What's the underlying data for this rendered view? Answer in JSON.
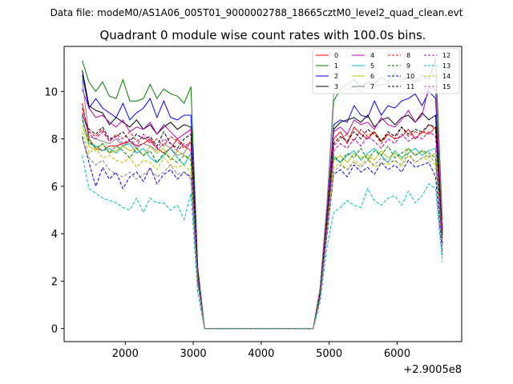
{
  "chart_data": {
    "type": "line",
    "suptitle": "Data file: modeM0/AS1A06_005T01_9000002788_18665cztM0_level2_quad_clean.evt",
    "title": "Quadrant 0 module wise count rates with 100.0s bins.",
    "xlabel": "",
    "ylabel": "",
    "x_offset_label": "+2.9005e8",
    "xlim": [
      1100,
      6950
    ],
    "ylim": [
      -0.55,
      11.9
    ],
    "xticks": [
      2000,
      3000,
      4000,
      5000,
      6000
    ],
    "xtick_labels": [
      "2000",
      "3000",
      "4000",
      "5000",
      "6000"
    ],
    "yticks": [
      0,
      2,
      4,
      6,
      8,
      10
    ],
    "ytick_labels": [
      "0",
      "2",
      "4",
      "6",
      "8",
      "10"
    ],
    "grid": false,
    "legend_position": "top-right",
    "x": [
      1366,
      1466,
      1566,
      1666,
      1766,
      1866,
      1966,
      2066,
      2166,
      2266,
      2366,
      2466,
      2566,
      2666,
      2766,
      2866,
      2966,
      3066,
      3166,
      3266,
      3366,
      3466,
      3566,
      3666,
      3766,
      3866,
      3966,
      4066,
      4166,
      4266,
      4366,
      4466,
      4566,
      4666,
      4766,
      4866,
      4966,
      5066,
      5166,
      5266,
      5366,
      5466,
      5566,
      5666,
      5766,
      5866,
      5966,
      6066,
      6166,
      6266,
      6366,
      6466,
      6566,
      6666
    ],
    "series": [
      {
        "name": "0",
        "color": "#ff0000",
        "dash": "solid",
        "values": [
          9.5,
          8.0,
          7.6,
          7.5,
          7.7,
          7.7,
          7.8,
          7.9,
          7.7,
          7.8,
          8.0,
          7.6,
          7.4,
          7.6,
          8.0,
          7.7,
          7.5,
          2.2,
          0,
          0,
          0,
          0,
          0,
          0,
          0,
          0,
          0,
          0,
          0,
          0,
          0,
          0,
          0,
          0,
          0,
          1.5,
          4.5,
          8.0,
          8.3,
          7.8,
          8.5,
          8.2,
          8.0,
          8.3,
          7.9,
          8.2,
          8.0,
          8.1,
          8.4,
          8.0,
          8.3,
          8.2,
          8.5,
          4.0
        ]
      },
      {
        "name": "1",
        "color": "#008000",
        "dash": "solid",
        "values": [
          11.3,
          10.4,
          10.0,
          10.4,
          9.8,
          9.7,
          10.5,
          9.6,
          9.6,
          9.7,
          10.3,
          9.7,
          10.1,
          9.9,
          9.8,
          9.5,
          10.2,
          2.6,
          0,
          0,
          0,
          0,
          0,
          0,
          0,
          0,
          0,
          0,
          0,
          0,
          0,
          0,
          0,
          0,
          0,
          1.7,
          5.2,
          9.6,
          10.1,
          10.3,
          10.5,
          10.2,
          10.4,
          10.3,
          10.6,
          10.4,
          10.8,
          10.5,
          10.6,
          10.4,
          10.7,
          10.5,
          11.4,
          4.6
        ]
      },
      {
        "name": "2",
        "color": "#0000ff",
        "dash": "solid",
        "values": [
          10.7,
          9.3,
          9.7,
          9.3,
          9.1,
          8.9,
          9.5,
          8.8,
          9.1,
          9.3,
          9.7,
          8.9,
          9.6,
          8.9,
          8.8,
          9.0,
          9.0,
          2.4,
          0,
          0,
          0,
          0,
          0,
          0,
          0,
          0,
          0,
          0,
          0,
          0,
          0,
          0,
          0,
          0,
          0,
          1.6,
          4.8,
          8.6,
          8.8,
          8.7,
          9.4,
          9.0,
          8.9,
          9.6,
          9.0,
          9.4,
          9.3,
          9.6,
          9.7,
          9.9,
          9.4,
          10.0,
          9.7,
          4.2
        ]
      },
      {
        "name": "3",
        "color": "#000000",
        "dash": "solid",
        "values": [
          10.9,
          9.4,
          9.2,
          9.1,
          8.6,
          8.9,
          8.7,
          8.5,
          8.8,
          8.4,
          8.6,
          8.2,
          8.5,
          8.7,
          8.4,
          8.6,
          8.5,
          2.3,
          0,
          0,
          0,
          0,
          0,
          0,
          0,
          0,
          0,
          0,
          0,
          0,
          0,
          0,
          0,
          0,
          0,
          1.6,
          4.7,
          8.4,
          8.7,
          8.8,
          8.9,
          8.7,
          9.0,
          8.5,
          8.8,
          8.9,
          8.6,
          8.9,
          9.0,
          8.7,
          9.1,
          8.8,
          9.0,
          4.1
        ]
      },
      {
        "name": "4",
        "color": "#bf00bf",
        "dash": "solid",
        "values": [
          10.1,
          9.3,
          8.9,
          9.0,
          8.7,
          8.5,
          8.8,
          8.3,
          8.5,
          8.4,
          8.7,
          8.2,
          8.6,
          8.3,
          8.0,
          8.2,
          8.4,
          2.3,
          0,
          0,
          0,
          0,
          0,
          0,
          0,
          0,
          0,
          0,
          0,
          0,
          0,
          0,
          0,
          0,
          0,
          1.6,
          4.7,
          8.3,
          8.5,
          8.2,
          8.8,
          8.6,
          8.7,
          8.4,
          8.9,
          8.6,
          8.5,
          8.8,
          9.2,
          8.7,
          9.0,
          10.2,
          10.1,
          4.2
        ]
      },
      {
        "name": "5",
        "color": "#00bfbf",
        "dash": "solid",
        "values": [
          8.9,
          7.8,
          7.7,
          7.5,
          7.6,
          7.4,
          7.7,
          7.8,
          7.4,
          7.6,
          7.2,
          7.0,
          7.3,
          7.6,
          7.2,
          6.9,
          7.4,
          2.1,
          0,
          0,
          0,
          0,
          0,
          0,
          0,
          0,
          0,
          0,
          0,
          0,
          0,
          0,
          0,
          0,
          0,
          1.4,
          4.2,
          7.2,
          7.0,
          7.3,
          7.5,
          7.1,
          7.4,
          7.6,
          7.3,
          7.0,
          7.5,
          7.2,
          7.4,
          7.6,
          7.3,
          7.5,
          7.6,
          3.6
        ]
      },
      {
        "name": "6",
        "color": "#bfbf00",
        "dash": "solid",
        "values": [
          8.6,
          7.7,
          7.5,
          7.8,
          7.4,
          7.5,
          7.7,
          7.5,
          7.6,
          7.3,
          7.7,
          7.4,
          7.6,
          7.1,
          7.5,
          7.3,
          7.2,
          2.1,
          0,
          0,
          0,
          0,
          0,
          0,
          0,
          0,
          0,
          0,
          0,
          0,
          0,
          0,
          0,
          0,
          0,
          1.4,
          4.2,
          7.1,
          7.3,
          7.0,
          7.4,
          7.2,
          7.3,
          7.1,
          7.5,
          7.2,
          7.4,
          7.1,
          7.6,
          7.3,
          7.5,
          7.2,
          7.4,
          3.5
        ]
      },
      {
        "name": "7",
        "color": "#808080",
        "dash": "solid",
        "values": [
          10.5,
          8.1,
          8.0,
          7.9,
          7.8,
          8.0,
          7.7,
          7.9,
          7.6,
          7.8,
          7.7,
          7.5,
          7.8,
          7.6,
          7.3,
          7.4,
          7.9,
          2.2,
          0,
          0,
          0,
          0,
          0,
          0,
          0,
          0,
          0,
          0,
          0,
          0,
          0,
          0,
          0,
          0,
          0,
          1.7,
          5.2,
          9.9,
          10.0,
          10.1,
          10.2,
          10.0,
          10.4,
          10.2,
          10.3,
          10.3,
          10.5,
          10.4,
          10.6,
          10.4,
          10.5,
          10.6,
          10.7,
          4.4
        ]
      },
      {
        "name": "8",
        "color": "#ff0000",
        "dash": "dashed",
        "values": [
          9.3,
          8.3,
          8.1,
          8.4,
          7.9,
          8.2,
          8.0,
          8.3,
          7.9,
          8.1,
          7.8,
          8.0,
          7.7,
          8.1,
          7.9,
          7.6,
          7.9,
          2.2,
          0,
          0,
          0,
          0,
          0,
          0,
          0,
          0,
          0,
          0,
          0,
          0,
          0,
          0,
          0,
          0,
          0,
          1.5,
          4.6,
          7.7,
          8.0,
          8.2,
          7.9,
          8.4,
          8.1,
          8.3,
          7.8,
          8.2,
          8.0,
          8.5,
          8.1,
          8.3,
          8.2,
          8.6,
          8.4,
          3.8
        ]
      },
      {
        "name": "9",
        "color": "#008000",
        "dash": "dashed",
        "values": [
          8.8,
          7.9,
          7.6,
          7.8,
          7.4,
          7.7,
          7.5,
          7.2,
          7.6,
          7.3,
          7.5,
          7.0,
          7.4,
          7.2,
          7.0,
          7.3,
          7.1,
          2.0,
          0,
          0,
          0,
          0,
          0,
          0,
          0,
          0,
          0,
          0,
          0,
          0,
          0,
          0,
          0,
          0,
          0,
          1.4,
          4.3,
          7.3,
          7.0,
          7.4,
          7.2,
          7.6,
          7.1,
          7.5,
          7.3,
          7.7,
          7.2,
          7.4,
          7.6,
          7.3,
          7.5,
          7.4,
          7.2,
          3.5
        ]
      },
      {
        "name": "10",
        "color": "#0000ff",
        "dash": "dashed",
        "values": [
          8.1,
          7.0,
          6.0,
          6.8,
          6.3,
          6.6,
          5.9,
          6.4,
          6.6,
          6.2,
          6.8,
          6.1,
          6.5,
          6.7,
          6.3,
          6.6,
          6.4,
          1.9,
          0,
          0,
          0,
          0,
          0,
          0,
          0,
          0,
          0,
          0,
          0,
          0,
          0,
          0,
          0,
          0,
          0,
          1.3,
          3.9,
          6.5,
          6.7,
          6.4,
          6.9,
          6.6,
          6.8,
          6.5,
          7.0,
          6.7,
          6.9,
          6.6,
          7.1,
          6.8,
          6.9,
          7.0,
          6.4,
          3.1
        ]
      },
      {
        "name": "11",
        "color": "#000000",
        "dash": "dashed",
        "values": [
          9.0,
          8.4,
          8.2,
          8.5,
          8.0,
          8.1,
          8.3,
          7.9,
          8.2,
          8.0,
          8.1,
          7.7,
          8.3,
          7.8,
          7.6,
          8.0,
          8.2,
          2.2,
          0,
          0,
          0,
          0,
          0,
          0,
          0,
          0,
          0,
          0,
          0,
          0,
          0,
          0,
          0,
          0,
          0,
          1.5,
          4.6,
          7.8,
          8.1,
          7.9,
          8.3,
          8.0,
          8.4,
          8.2,
          7.9,
          8.3,
          8.1,
          8.5,
          8.2,
          8.4,
          8.3,
          8.6,
          8.5,
          3.9
        ]
      },
      {
        "name": "12",
        "color": "#bf00bf",
        "dash": "dashed",
        "values": [
          9.1,
          8.2,
          8.0,
          8.3,
          7.9,
          8.1,
          7.8,
          8.0,
          7.7,
          8.2,
          7.9,
          7.6,
          8.0,
          7.8,
          7.5,
          7.8,
          7.7,
          2.1,
          0,
          0,
          0,
          0,
          0,
          0,
          0,
          0,
          0,
          0,
          0,
          0,
          0,
          0,
          0,
          0,
          0,
          1.4,
          4.4,
          7.5,
          7.8,
          7.6,
          8.0,
          7.7,
          8.1,
          7.9,
          7.6,
          8.0,
          7.8,
          8.2,
          7.9,
          8.1,
          8.0,
          8.3,
          8.1,
          3.6
        ]
      },
      {
        "name": "13",
        "color": "#00bfbf",
        "dash": "dashed",
        "values": [
          7.3,
          5.9,
          5.7,
          5.5,
          5.4,
          5.3,
          5.1,
          5.0,
          5.5,
          4.9,
          5.5,
          5.3,
          5.3,
          5.0,
          5.2,
          4.6,
          5.7,
          1.5,
          0,
          0,
          0,
          0,
          0,
          0,
          0,
          0,
          0,
          0,
          0,
          0,
          0,
          0,
          0,
          0,
          0,
          1.1,
          3.4,
          4.9,
          5.1,
          5.4,
          5.2,
          5.1,
          5.9,
          5.4,
          5.2,
          5.5,
          5.6,
          5.2,
          5.8,
          5.3,
          5.6,
          6.1,
          5.9,
          2.8
        ]
      },
      {
        "name": "14",
        "color": "#bfbf00",
        "dash": "dashed",
        "values": [
          8.3,
          7.4,
          7.6,
          7.2,
          7.3,
          7.1,
          7.0,
          7.2,
          6.8,
          7.1,
          7.0,
          6.7,
          7.2,
          6.9,
          6.8,
          6.9,
          6.6,
          2.0,
          0,
          0,
          0,
          0,
          0,
          0,
          0,
          0,
          0,
          0,
          0,
          0,
          0,
          0,
          0,
          0,
          0,
          1.3,
          4.0,
          6.8,
          7.0,
          6.7,
          7.1,
          6.9,
          7.2,
          6.8,
          7.0,
          6.9,
          7.1,
          6.8,
          7.3,
          7.0,
          7.2,
          7.1,
          6.9,
          3.3
        ]
      },
      {
        "name": "15",
        "color": "#808080",
        "dash": "dashed",
        "values": [
          8.0,
          7.2,
          6.9,
          7.1,
          6.7,
          6.5,
          6.4,
          6.6,
          6.3,
          6.5,
          6.7,
          6.4,
          6.6,
          6.9,
          6.5,
          6.6,
          6.3,
          1.9,
          0,
          0,
          0,
          0,
          0,
          0,
          0,
          0,
          0,
          0,
          0,
          0,
          0,
          0,
          0,
          0,
          0,
          1.3,
          4.0,
          6.6,
          6.9,
          6.7,
          7.0,
          6.8,
          7.1,
          6.9,
          7.2,
          7.0,
          7.1,
          6.9,
          7.4,
          7.0,
          7.2,
          7.3,
          7.0,
          3.3
        ]
      }
    ]
  }
}
